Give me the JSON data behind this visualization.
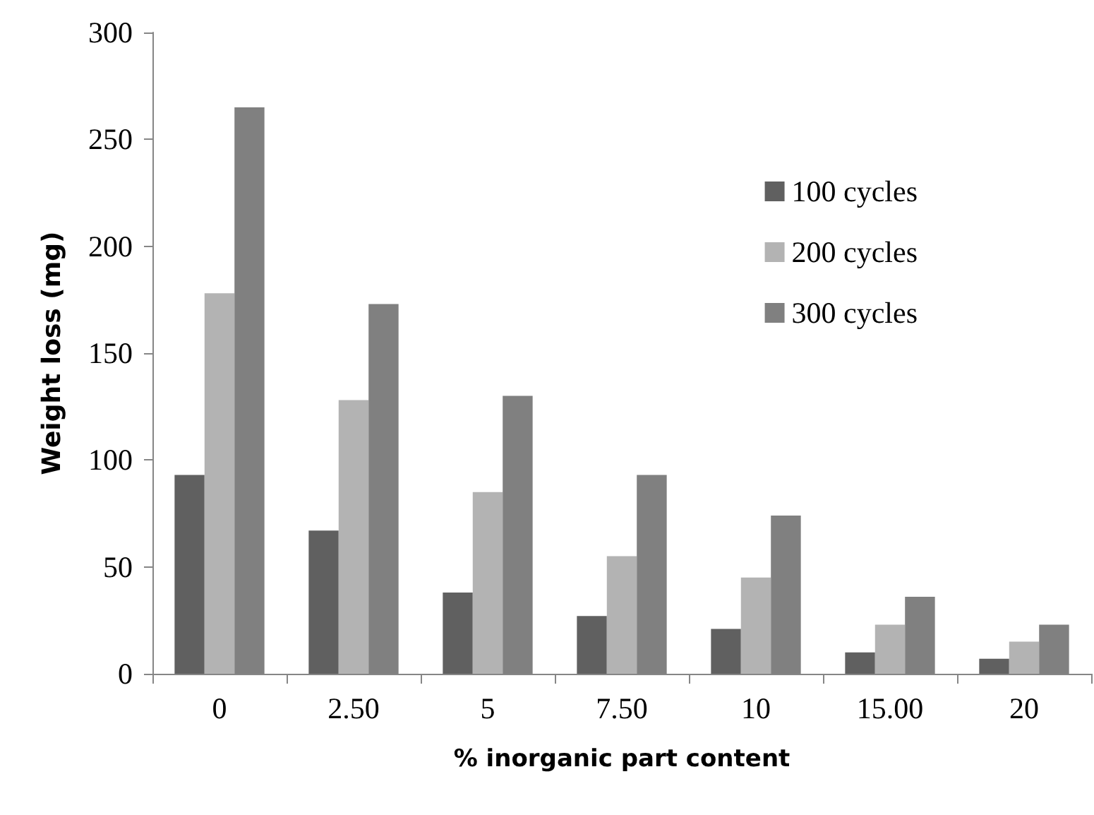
{
  "chart_data": {
    "type": "bar",
    "xlabel": "% inorganic part content",
    "ylabel": "Weight loss (mg)",
    "categories": [
      "0",
      "2.50",
      "5",
      "7.50",
      "10",
      "15.00",
      "20"
    ],
    "series": [
      {
        "name": "100 cycles",
        "color": "#606060",
        "values": [
          93,
          67,
          38,
          27,
          21,
          10,
          7
        ]
      },
      {
        "name": "200 cycles",
        "color": "#b3b3b3",
        "values": [
          178,
          128,
          85,
          55,
          45,
          23,
          15
        ]
      },
      {
        "name": "300 cycles",
        "color": "#808080",
        "values": [
          265,
          173,
          130,
          93,
          74,
          36,
          23
        ]
      }
    ],
    "ylim": [
      0,
      300
    ],
    "yticks": [
      0,
      50,
      100,
      150,
      200,
      250,
      300
    ],
    "grid": false,
    "legend": "top right"
  }
}
